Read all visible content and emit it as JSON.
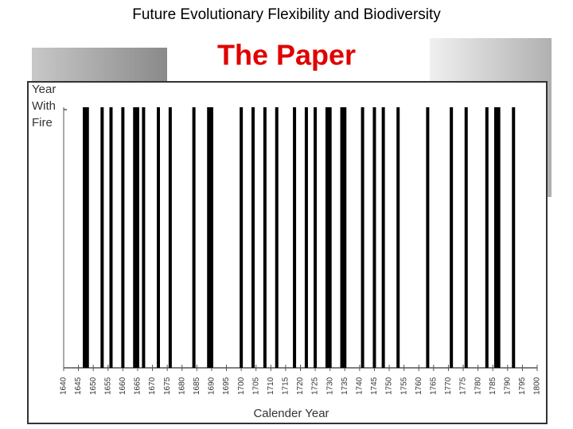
{
  "header": {
    "title": "Future Evolutionary Flexibility and Biodiversity",
    "subtitle": "The Paper"
  },
  "chart_data": {
    "type": "event",
    "ylabel": "Year With Fire",
    "xlabel": "Calender Year",
    "x": [
      1647,
      1648,
      1653,
      1656,
      1660,
      1664,
      1665,
      1667,
      1672,
      1676,
      1684,
      1689,
      1690,
      1700,
      1704,
      1708,
      1712,
      1718,
      1722,
      1725,
      1729,
      1730,
      1734,
      1735,
      1741,
      1745,
      1748,
      1753,
      1763,
      1771,
      1776,
      1783,
      1786,
      1787,
      1792
    ],
    "color": "#000000",
    "xlim": [
      1640,
      1800
    ],
    "xticks": [
      1640,
      1645,
      1650,
      1655,
      1660,
      1665,
      1670,
      1675,
      1680,
      1685,
      1690,
      1695,
      1700,
      1705,
      1710,
      1715,
      1720,
      1725,
      1730,
      1735,
      1740,
      1745,
      1750,
      1755,
      1760,
      1765,
      1770,
      1775,
      1780,
      1785,
      1790,
      1795,
      1800
    ]
  }
}
